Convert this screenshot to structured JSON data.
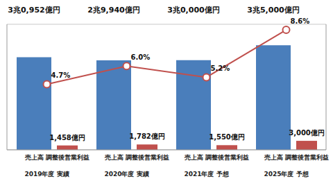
{
  "chart_data": {
    "type": "bar",
    "categories": [
      "2019年度 実績",
      "2020年度 実績",
      "2021年度 予想",
      "2025年度 予想"
    ],
    "series": [
      {
        "name": "売上高",
        "type": "bar",
        "color": "#4a7ebb",
        "values": [
          30952,
          29940,
          30000,
          35000
        ],
        "value_labels": [
          "3兆0,952億円",
          "2兆9,940億円",
          "3兆0,000億円",
          "3兆5,000億円"
        ]
      },
      {
        "name": "調整後営業利益",
        "type": "bar",
        "color": "#c0504d",
        "values": [
          1458,
          1782,
          1550,
          3000
        ],
        "value_labels": [
          "1,458億円",
          "1,782億円",
          "1,550億円",
          "3,000億円"
        ]
      },
      {
        "type": "line",
        "axis": "y2",
        "color": "#c0504d",
        "marker": "circle",
        "line_style": "solid",
        "values": [
          4.7,
          6.0,
          5.2,
          8.6
        ],
        "value_labels": [
          "4.7%",
          "6.0%",
          "5.2%",
          "8.6%"
        ]
      }
    ],
    "ylim": [
      0,
      42000
    ],
    "yticks": [
      0,
      6000,
      12000,
      18000,
      24000,
      30000,
      36000,
      42000
    ],
    "y2lim": [
      0,
      9
    ],
    "y2ticks": [
      0,
      3,
      6,
      9
    ],
    "grid": true,
    "data_labels": true,
    "tick_labels": "x"
  }
}
